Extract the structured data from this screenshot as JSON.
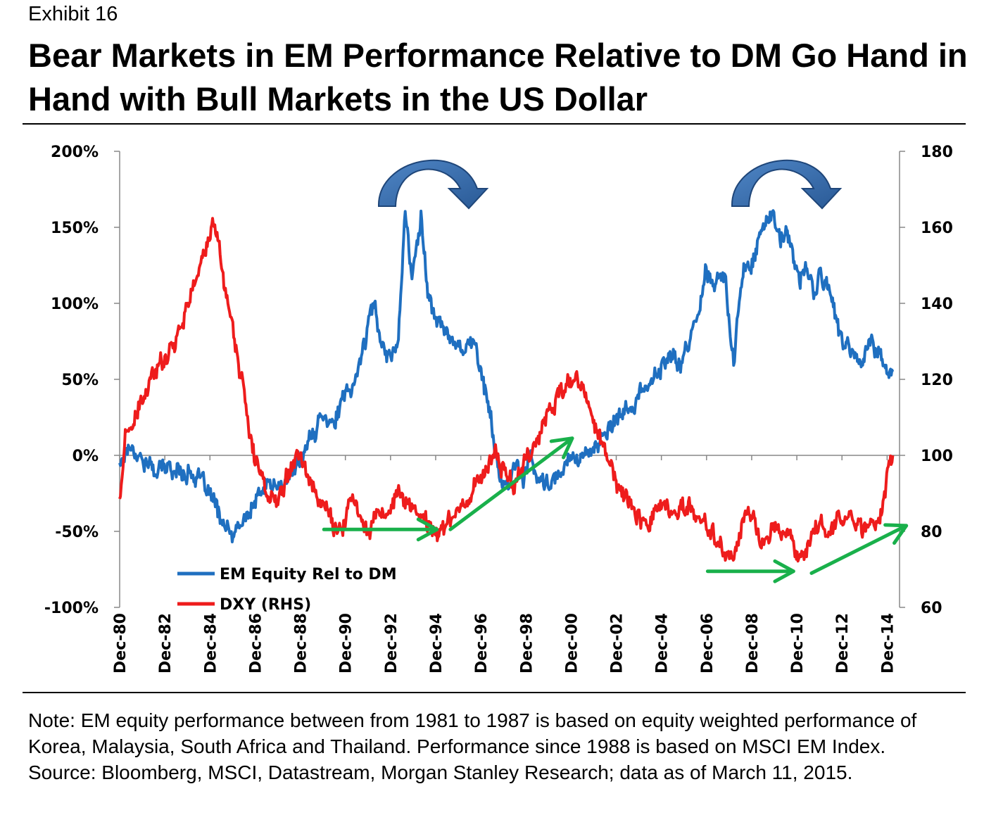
{
  "header": {
    "exhibit": "Exhibit 16",
    "title": "Bear Markets in EM Performance Relative to DM Go Hand in Hand with Bull Markets in the US Dollar"
  },
  "note": "Note: EM equity performance between from 1981 to 1987 is based on equity weighted performance of Korea, Malaysia, South Africa and Thailand. Performance since 1988 is based on MSCI EM Index. Source: Bloomberg, MSCI, Datastream, Morgan Stanley Research; data as of March 11, 2015.",
  "chart_data": {
    "type": "line",
    "title": "",
    "x_tick_labels": [
      "Dec-80",
      "Dec-82",
      "Dec-84",
      "Dec-86",
      "Dec-88",
      "Dec-90",
      "Dec-92",
      "Dec-94",
      "Dec-96",
      "Dec-98",
      "Dec-00",
      "Dec-02",
      "Dec-04",
      "Dec-06",
      "Dec-08",
      "Dec-10",
      "Dec-12",
      "Dec-14"
    ],
    "xlim": [
      1980.95,
      2015.5
    ],
    "left_axis": {
      "ylim": [
        -100,
        200
      ],
      "tick_values": [
        -100,
        -50,
        0,
        50,
        100,
        150,
        200
      ],
      "tick_labels": [
        "-100%",
        "-50%",
        "0%",
        "50%",
        "100%",
        "150%",
        "200%"
      ]
    },
    "right_axis": {
      "ylim": [
        60,
        180
      ],
      "tick_values": [
        60,
        80,
        100,
        120,
        140,
        160,
        180
      ],
      "tick_labels": [
        "60",
        "80",
        "100",
        "120",
        "140",
        "160",
        "180"
      ]
    },
    "series": [
      {
        "name": "EM Equity Rel to DM",
        "axis": "left",
        "color": "#1f6fc0",
        "x": [
          1980.95,
          1981.4,
          1981.9,
          1982.5,
          1983.0,
          1983.6,
          1984.2,
          1984.8,
          1985.4,
          1985.9,
          1986.5,
          1987.0,
          1987.5,
          1988.1,
          1988.5,
          1989.0,
          1989.5,
          1990.0,
          1990.4,
          1990.8,
          1991.3,
          1991.8,
          1992.2,
          1992.6,
          1993.0,
          1993.3,
          1993.6,
          1993.9,
          1994.3,
          1994.6,
          1995.0,
          1995.4,
          1995.8,
          1996.2,
          1996.6,
          1997.0,
          1997.3,
          1997.6,
          1997.9,
          1998.2,
          1998.5,
          1998.8,
          1999.1,
          1999.4,
          1999.8,
          2000.2,
          2000.6,
          2001.0,
          2001.3,
          2001.7,
          2002.0,
          2002.4,
          2002.8,
          2003.3,
          2003.8,
          2004.3,
          2004.8,
          2005.3,
          2005.8,
          2006.2,
          2006.6,
          2006.9,
          2007.2,
          2007.5,
          2007.8,
          2008.0,
          2008.15,
          2008.3,
          2008.6,
          2009.0,
          2009.3,
          2009.6,
          2009.9,
          2010.2,
          2010.5,
          2010.8,
          2011.1,
          2011.4,
          2011.7,
          2012.0,
          2012.3,
          2012.6,
          2012.9,
          2013.2,
          2013.5,
          2013.8,
          2014.1,
          2014.4,
          2014.7,
          2014.9,
          2015.2
        ],
        "values": [
          -5,
          8,
          -2,
          -10,
          -8,
          -10,
          -12,
          -22,
          -40,
          -55,
          -42,
          -30,
          -18,
          -22,
          -15,
          0,
          12,
          30,
          20,
          35,
          45,
          75,
          100,
          72,
          65,
          80,
          160,
          115,
          160,
          105,
          90,
          80,
          75,
          72,
          75,
          55,
          30,
          5,
          -25,
          -20,
          -5,
          -15,
          0,
          -15,
          -20,
          -18,
          -10,
          5,
          -5,
          5,
          5,
          10,
          20,
          28,
          35,
          45,
          55,
          65,
          60,
          75,
          95,
          125,
          110,
          120,
          115,
          80,
          60,
          90,
          120,
          130,
          145,
          155,
          160,
          140,
          145,
          130,
          115,
          125,
          105,
          120,
          110,
          100,
          75,
          70,
          65,
          60,
          75,
          70,
          65,
          58,
          55
        ]
      },
      {
        "name": "DXY (RHS)",
        "axis": "right",
        "color": "#ee1c1c",
        "x": [
          1980.95,
          1981.2,
          1981.6,
          1982.0,
          1982.4,
          1982.8,
          1983.2,
          1983.6,
          1984.0,
          1984.4,
          1984.8,
          1985.1,
          1985.3,
          1985.6,
          1986.0,
          1986.4,
          1986.8,
          1987.2,
          1987.6,
          1988.0,
          1988.4,
          1988.8,
          1989.2,
          1989.6,
          1990.0,
          1990.4,
          1990.8,
          1991.2,
          1991.6,
          1992.0,
          1992.4,
          1992.8,
          1993.2,
          1993.6,
          1994.0,
          1994.4,
          1994.8,
          1995.2,
          1995.6,
          1996.0,
          1996.4,
          1996.8,
          1997.2,
          1997.6,
          1998.0,
          1998.4,
          1998.8,
          1999.2,
          1999.6,
          2000.0,
          2000.4,
          2000.8,
          2001.2,
          2001.6,
          2002.0,
          2002.4,
          2002.8,
          2003.2,
          2003.6,
          2004.0,
          2004.4,
          2004.8,
          2005.2,
          2005.6,
          2006.0,
          2006.4,
          2006.8,
          2007.2,
          2007.6,
          2008.0,
          2008.3,
          2008.6,
          2008.9,
          2009.2,
          2009.6,
          2010.0,
          2010.3,
          2010.6,
          2010.9,
          2011.2,
          2011.6,
          2012.0,
          2012.4,
          2012.8,
          2013.2,
          2013.6,
          2014.0,
          2014.4,
          2014.7,
          2014.9,
          2015.2
        ],
        "values": [
          88,
          105,
          108,
          115,
          120,
          125,
          128,
          134,
          140,
          148,
          155,
          160,
          158,
          145,
          132,
          118,
          102,
          95,
          88,
          90,
          96,
          102,
          96,
          90,
          88,
          82,
          80,
          88,
          85,
          80,
          86,
          82,
          90,
          88,
          86,
          84,
          80,
          81,
          83,
          86,
          89,
          93,
          97,
          100,
          96,
          92,
          98,
          102,
          106,
          112,
          116,
          118,
          120,
          115,
          108,
          102,
          95,
          90,
          88,
          84,
          82,
          87,
          86,
          84,
          87,
          85,
          82,
          80,
          76,
          72,
          76,
          84,
          84,
          80,
          76,
          82,
          78,
          80,
          75,
          73,
          79,
          82,
          80,
          83,
          84,
          82,
          81,
          82,
          86,
          93,
          100
        ]
      }
    ],
    "annotations": [
      {
        "type": "curved-arrow",
        "color": "#2e5fa0",
        "description": "rotation over 1994 peak"
      },
      {
        "type": "curved-arrow",
        "color": "#2e5fa0",
        "description": "rotation over 2010 peak"
      },
      {
        "type": "straight-arrow",
        "color": "#19b04b",
        "from": [
          1990.0,
          80.5
        ],
        "to": [
          1995.0,
          80.5
        ]
      },
      {
        "type": "straight-arrow",
        "color": "#19b04b",
        "from": [
          1995.6,
          80.5
        ],
        "to": [
          2001.0,
          104.5
        ]
      },
      {
        "type": "straight-arrow",
        "color": "#19b04b",
        "from": [
          2007.0,
          69.5
        ],
        "to": [
          2010.8,
          69.5
        ]
      },
      {
        "type": "straight-arrow",
        "color": "#19b04b",
        "from": [
          2011.6,
          69.0
        ],
        "to": [
          2015.8,
          81.5
        ]
      }
    ],
    "legend": {
      "position": "bottom-left",
      "entries": [
        "EM Equity Rel to DM",
        "DXY (RHS)"
      ]
    }
  }
}
